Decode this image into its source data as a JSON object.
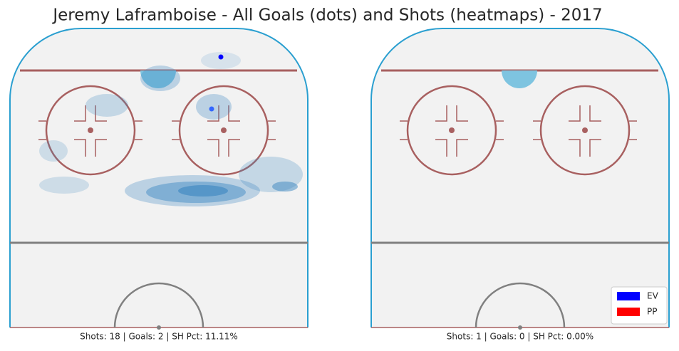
{
  "title": "Jeremy Laframboise - All Goals (dots) and Shots (heatmaps) - 2017",
  "panels": [
    {
      "caption": "Shots: 18 | Goals: 2 | SH Pct: 11.11%"
    },
    {
      "caption": "Shots: 1 | Goals: 0 | SH Pct: 0.00%"
    }
  ],
  "legend": [
    {
      "label": "EV",
      "color": "#0000ff"
    },
    {
      "label": "PP",
      "color": "#ff0000"
    }
  ]
}
